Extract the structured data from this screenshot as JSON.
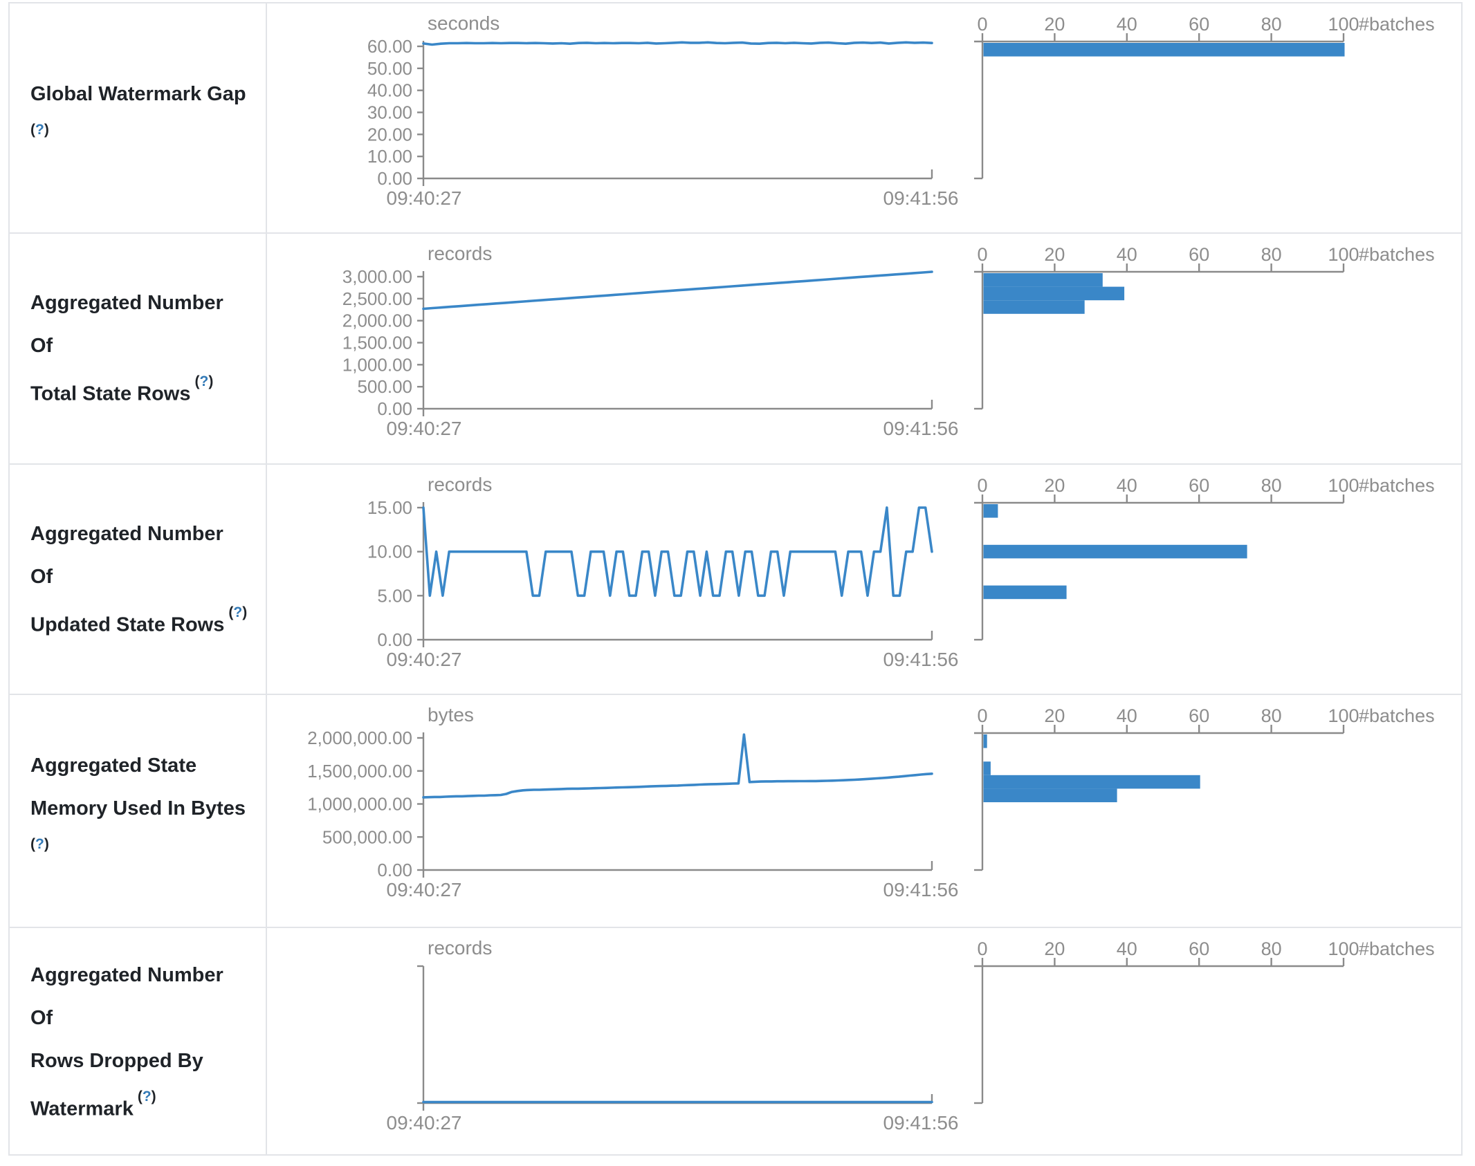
{
  "page": {
    "kind": "streaming-query-statistics",
    "colors": {
      "accent_blue": "#3a87c8",
      "axis_gray": "#8a8a8a",
      "text_gray": "#8d8d8d",
      "label_dark": "#1f2328",
      "help_blue": "#337ab7",
      "border": "#e2e4e8"
    }
  },
  "strings": {
    "paren_open": "(",
    "question": "?",
    "paren_close": ")"
  },
  "axis": {
    "time_start": "09:40:27",
    "time_end": "09:41:56"
  },
  "chart_data": [
    {
      "type": "line",
      "metric": "Global Watermark Gap",
      "label_lines": [
        "Global Watermark Gap",
        ""
      ],
      "unit": "seconds",
      "x_start": "09:40:27",
      "x_end": "09:41:56",
      "y_tick_labels": [
        "60.00",
        "50.00",
        "40.00",
        "30.00",
        "20.00",
        "10.00",
        "0.00"
      ],
      "y_tick_values": [
        60,
        50,
        40,
        30,
        20,
        10,
        0
      ],
      "y_axis_max": 60,
      "values": [
        61.3,
        60.8,
        61.2,
        61.4,
        61.4,
        61.5,
        61.4,
        61.4,
        61.5,
        61.4,
        61.5,
        61.5,
        61.4,
        61.5,
        61.4,
        61.3,
        61.4,
        61.2,
        61.5,
        61.6,
        61.4,
        61.5,
        61.4,
        61.5,
        61.5,
        61.4,
        61.6,
        61.3,
        61.4,
        61.6,
        61.8,
        61.6,
        61.6,
        61.8,
        61.5,
        61.4,
        61.6,
        61.7,
        61.3,
        61.2,
        61.5,
        61.6,
        61.4,
        61.6,
        61.4,
        61.3,
        61.6,
        61.7,
        61.4,
        61.2,
        61.6,
        61.7,
        61.5,
        61.7,
        61.3,
        61.6,
        61.8,
        61.6,
        61.7,
        61.5
      ],
      "histogram": {
        "type": "bar",
        "axis_ticks": [
          0,
          20,
          40,
          60,
          80,
          100
        ],
        "axis_label": "#batches",
        "n_bins": 10,
        "bars": [
          {
            "bin": 0,
            "count": 100
          }
        ]
      }
    },
    {
      "type": "line",
      "metric": "Aggregated Number Of Total State Rows",
      "label_lines": [
        "Aggregated Number Of",
        "Total State Rows"
      ],
      "unit": "records",
      "x_start": "09:40:27",
      "x_end": "09:41:56",
      "y_tick_labels": [
        "3,000.00",
        "2,500.00",
        "2,000.00",
        "1,500.00",
        "1,000.00",
        "500.00",
        "0.00"
      ],
      "y_tick_values": [
        3000,
        2500,
        2000,
        1500,
        1000,
        500,
        0
      ],
      "y_axis_max": 3000,
      "values": [
        2270,
        2285,
        2300,
        2315,
        2330,
        2345,
        2360,
        2375,
        2390,
        2405,
        2420,
        2435,
        2450,
        2465,
        2480,
        2495,
        2510,
        2525,
        2540,
        2555,
        2570,
        2585,
        2600,
        2615,
        2630,
        2645,
        2660,
        2675,
        2690,
        2705,
        2720,
        2735,
        2750,
        2765,
        2780,
        2795,
        2810,
        2825,
        2840,
        2855,
        2870,
        2885,
        2900,
        2915,
        2930,
        2945,
        2960,
        2975,
        2990,
        3005,
        3020,
        3035,
        3050,
        3065,
        3080,
        3095,
        3110
      ],
      "histogram": {
        "type": "bar",
        "axis_ticks": [
          0,
          20,
          40,
          60,
          80,
          100
        ],
        "axis_label": "#batches",
        "n_bins": 10,
        "bars": [
          {
            "bin": 0,
            "count": 33
          },
          {
            "bin": 1,
            "count": 39
          },
          {
            "bin": 2,
            "count": 28
          }
        ]
      }
    },
    {
      "type": "line",
      "metric": "Aggregated Number Of Updated State Rows",
      "label_lines": [
        "Aggregated Number Of",
        "Updated State Rows"
      ],
      "unit": "records",
      "x_start": "09:40:27",
      "x_end": "09:41:56",
      "y_tick_labels": [
        "15.00",
        "10.00",
        "5.00",
        "0.00"
      ],
      "y_tick_values": [
        15,
        10,
        5,
        0
      ],
      "y_axis_max": 15,
      "values": [
        15,
        5,
        10,
        5,
        10,
        10,
        10,
        10,
        10,
        10,
        10,
        10,
        10,
        10,
        10,
        10,
        10,
        5,
        5,
        10,
        10,
        10,
        10,
        10,
        5,
        5,
        10,
        10,
        10,
        5,
        10,
        10,
        5,
        5,
        10,
        10,
        5,
        10,
        10,
        5,
        5,
        10,
        10,
        5,
        10,
        5,
        5,
        10,
        10,
        5,
        10,
        10,
        5,
        5,
        10,
        10,
        5,
        10,
        10,
        10,
        10,
        10,
        10,
        10,
        10,
        5,
        10,
        10,
        10,
        5,
        10,
        10,
        15,
        5,
        5,
        10,
        10,
        15,
        15,
        10
      ],
      "histogram": {
        "type": "bar",
        "axis_ticks": [
          0,
          20,
          40,
          60,
          80,
          100
        ],
        "axis_label": "#batches",
        "n_bins": 10,
        "bars": [
          {
            "bin": 0,
            "count": 4
          },
          {
            "bin": 3,
            "count": 73
          },
          {
            "bin": 6,
            "count": 23
          }
        ]
      }
    },
    {
      "type": "line",
      "metric": "Aggregated State Memory Used In Bytes",
      "label_lines": [
        "Aggregated State",
        "Memory Used In Bytes",
        ""
      ],
      "unit": "bytes",
      "x_start": "09:40:27",
      "x_end": "09:41:56",
      "y_tick_labels": [
        "2,000,000.00",
        "1,500,000.00",
        "1,000,000.00",
        "500,000.00",
        "0.00"
      ],
      "y_tick_values": [
        2000000,
        1500000,
        1000000,
        500000,
        0
      ],
      "y_axis_max": 2000000,
      "values": [
        1100000,
        1103000,
        1106000,
        1106000,
        1110000,
        1113000,
        1116000,
        1116000,
        1119000,
        1122000,
        1126000,
        1126000,
        1131000,
        1133000,
        1136000,
        1152000,
        1182000,
        1196000,
        1206000,
        1211000,
        1215000,
        1215000,
        1218000,
        1221000,
        1223000,
        1226000,
        1229000,
        1231000,
        1231000,
        1233000,
        1236000,
        1239000,
        1241000,
        1243000,
        1246000,
        1249000,
        1251000,
        1253000,
        1256000,
        1259000,
        1263000,
        1266000,
        1269000,
        1271000,
        1273000,
        1276000,
        1279000,
        1283000,
        1286000,
        1289000,
        1293000,
        1296000,
        1299000,
        1301000,
        1303000,
        1306000,
        1309000,
        1311000,
        2050000,
        1332000,
        1336000,
        1339000,
        1341000,
        1341000,
        1343000,
        1343000,
        1345000,
        1345000,
        1346000,
        1346000,
        1347000,
        1347000,
        1349000,
        1351000,
        1353000,
        1356000,
        1359000,
        1363000,
        1367000,
        1371000,
        1376000,
        1381000,
        1387000,
        1393000,
        1399000,
        1406000,
        1413000,
        1421000,
        1429000,
        1437000,
        1445000,
        1452000,
        1458000
      ],
      "histogram": {
        "type": "bar",
        "axis_ticks": [
          0,
          20,
          40,
          60,
          80,
          100
        ],
        "axis_label": "#batches",
        "n_bins": 10,
        "bars": [
          {
            "bin": 0,
            "count": 1
          },
          {
            "bin": 2,
            "count": 2
          },
          {
            "bin": 3,
            "count": 60
          },
          {
            "bin": 4,
            "count": 37
          }
        ]
      }
    },
    {
      "type": "line",
      "metric": "Aggregated Number Of Rows Dropped By Watermark",
      "label_lines": [
        "Aggregated Number Of",
        "Rows Dropped By",
        "Watermark"
      ],
      "unit": "records",
      "x_start": "09:40:27",
      "x_end": "09:41:56",
      "y_tick_labels": [],
      "y_tick_values": [],
      "y_axis_max": 1,
      "values": [
        0,
        0
      ],
      "histogram": {
        "type": "bar",
        "axis_ticks": [
          0,
          20,
          40,
          60,
          80,
          100
        ],
        "axis_label": "#batches",
        "n_bins": 10,
        "bars": []
      }
    }
  ]
}
